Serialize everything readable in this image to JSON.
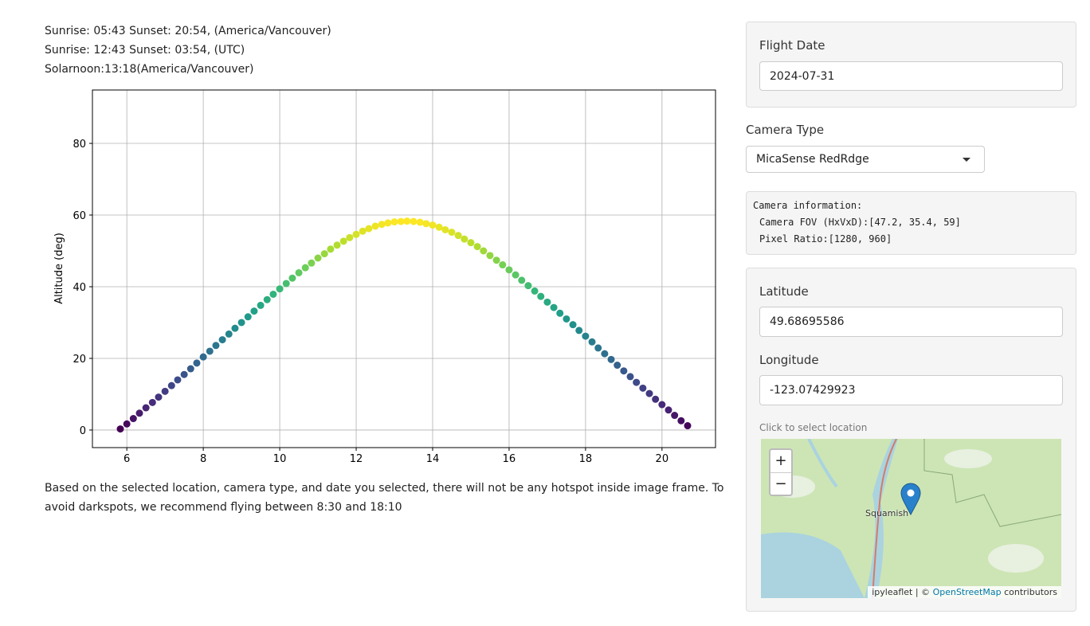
{
  "info_lines": [
    "Sunrise: 05:43 Sunset: 20:54, (America/Vancouver)",
    "Sunrise: 12:43 Sunset: 03:54, (UTC)",
    "Solarnoon:13:18(America/Vancouver)"
  ],
  "chart_data": {
    "type": "scatter",
    "ylabel": "Altitude (deg)",
    "colormap": "viridis",
    "grid": true,
    "x": [
      5.83,
      6.0,
      6.17,
      6.33,
      6.5,
      6.67,
      6.83,
      7.0,
      7.17,
      7.33,
      7.5,
      7.67,
      7.83,
      8.0,
      8.17,
      8.33,
      8.5,
      8.67,
      8.83,
      9.0,
      9.17,
      9.33,
      9.5,
      9.67,
      9.83,
      10.0,
      10.17,
      10.33,
      10.5,
      10.67,
      10.83,
      11.0,
      11.17,
      11.33,
      11.5,
      11.67,
      11.83,
      12.0,
      12.17,
      12.33,
      12.5,
      12.67,
      12.83,
      13.0,
      13.17,
      13.33,
      13.5,
      13.67,
      13.83,
      14.0,
      14.17,
      14.33,
      14.5,
      14.67,
      14.83,
      15.0,
      15.17,
      15.33,
      15.5,
      15.67,
      15.83,
      16.0,
      16.17,
      16.33,
      16.5,
      16.67,
      16.83,
      17.0,
      17.17,
      17.33,
      17.5,
      17.67,
      17.83,
      18.0,
      18.17,
      18.33,
      18.5,
      18.67,
      18.83,
      19.0,
      19.17,
      19.33,
      19.5,
      19.67,
      19.83,
      20.0,
      20.17,
      20.33,
      20.5,
      20.67
    ],
    "values": [
      0.3,
      1.7,
      3.2,
      4.7,
      6.2,
      7.7,
      9.2,
      10.8,
      12.4,
      14.0,
      15.5,
      17.1,
      18.7,
      20.4,
      22.0,
      23.6,
      25.2,
      26.8,
      28.4,
      30.0,
      31.6,
      33.2,
      34.8,
      36.4,
      37.9,
      39.4,
      40.9,
      42.4,
      43.9,
      45.3,
      46.6,
      48.0,
      49.2,
      50.5,
      51.6,
      52.7,
      53.7,
      54.6,
      55.5,
      56.2,
      56.9,
      57.4,
      57.8,
      58.1,
      58.2,
      58.3,
      58.2,
      58.0,
      57.6,
      57.2,
      56.6,
      55.9,
      55.2,
      54.3,
      53.3,
      52.3,
      51.2,
      50.0,
      48.7,
      47.4,
      46.1,
      44.7,
      43.3,
      41.8,
      40.3,
      38.8,
      37.3,
      35.7,
      34.2,
      32.6,
      31.0,
      29.4,
      27.8,
      26.2,
      24.6,
      22.9,
      21.3,
      19.7,
      18.1,
      16.5,
      14.9,
      13.3,
      11.7,
      10.2,
      8.6,
      7.1,
      5.6,
      4.1,
      2.6,
      1.2
    ],
    "xlim": [
      5.1,
      21.4
    ],
    "ylim": [
      -4.9,
      94.9
    ],
    "xticks": [
      6,
      8,
      10,
      12,
      14,
      16,
      18,
      20
    ],
    "yticks": [
      0,
      20,
      40,
      60,
      80
    ]
  },
  "recommendation": "Based on the selected location, camera type, and date you selected, there will not be any hotspot inside image frame. To avoid darkspots, we recommend flying between 8:30 and 18:10",
  "flight_date": {
    "label": "Flight Date",
    "value": "2024-07-31"
  },
  "camera_type": {
    "label": "Camera Type",
    "value": "MicaSense RedRdge"
  },
  "camera_info": [
    "Camera information:",
    "Camera FOV (HxVxD):[47.2, 35.4, 59]",
    "Pixel Ratio:[1280, 960]"
  ],
  "latitude": {
    "label": "Latitude",
    "value": "49.68695586"
  },
  "longitude": {
    "label": "Longitude",
    "value": "-123.07429923"
  },
  "map": {
    "hint": "Click to select location",
    "zoom_in": "+",
    "zoom_out": "−",
    "place": "Squamish",
    "attribution": [
      "ipyleaflet | ©",
      "OpenStreetMap",
      "contributors"
    ]
  }
}
